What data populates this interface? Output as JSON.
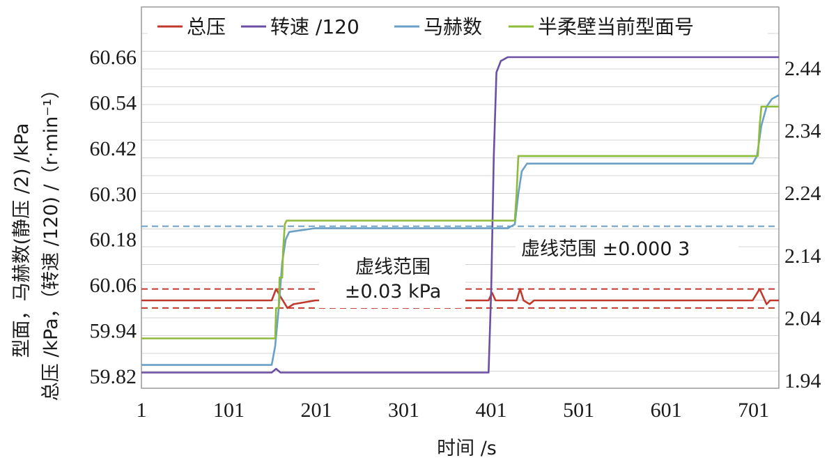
{
  "chart_data": {
    "type": "line",
    "xlabel": "时间 /s",
    "ylabel_left_line1": "型面，马赫数(静压 /2) /kPa",
    "ylabel_left_line2": "总压 /kPa，（转速 /120) /（r·min⁻¹）",
    "x_ticks": [
      "1",
      "101",
      "201",
      "301",
      "401",
      "501",
      "601",
      "701"
    ],
    "xlim": [
      1,
      730
    ],
    "y_left_ticks": [
      "59.82",
      "59.94",
      "60.06",
      "60.18",
      "60.30",
      "60.42",
      "60.54",
      "60.66"
    ],
    "ylim_left": [
      59.82,
      60.66
    ],
    "y_right_ticks": [
      "1.94",
      "2.04",
      "2.14",
      "2.24",
      "2.34",
      "2.44"
    ],
    "ylim_right": [
      1.94,
      2.44
    ],
    "grid": "horizontal",
    "legend_position": "top",
    "legend": [
      {
        "label": "总压",
        "color": "#c0392b"
      },
      {
        "label": "转速 /120",
        "color": "#6b4fa3"
      },
      {
        "label": "马赫数",
        "color": "#6aa0c8"
      },
      {
        "label": "半柔壁当前型面号",
        "color": "#8dbb3a"
      }
    ],
    "annotations": [
      {
        "text": "虚线范围",
        "text2": "±0.03 kPa"
      },
      {
        "text": "虚线范围 ±0.000 3"
      }
    ],
    "series": [
      {
        "name": "总压",
        "color": "#c0392b",
        "points": [
          [
            1,
            60.02
          ],
          [
            50,
            60.02
          ],
          [
            100,
            60.02
          ],
          [
            150,
            60.02
          ],
          [
            155,
            60.05
          ],
          [
            160,
            60.03
          ],
          [
            168,
            60.0
          ],
          [
            175,
            60.01
          ],
          [
            200,
            60.02
          ],
          [
            300,
            60.02
          ],
          [
            398,
            60.02
          ],
          [
            402,
            60.04
          ],
          [
            406,
            60.02
          ],
          [
            430,
            60.02
          ],
          [
            434,
            60.05
          ],
          [
            438,
            60.02
          ],
          [
            445,
            60.01
          ],
          [
            450,
            60.02
          ],
          [
            500,
            60.02
          ],
          [
            600,
            60.02
          ],
          [
            700,
            60.02
          ],
          [
            708,
            60.05
          ],
          [
            712,
            60.03
          ],
          [
            716,
            60.01
          ],
          [
            720,
            60.02
          ],
          [
            730,
            60.02
          ]
        ]
      },
      {
        "name": "转速 /120",
        "color": "#6b4fa3",
        "points": [
          [
            1,
            59.83
          ],
          [
            100,
            59.83
          ],
          [
            150,
            59.83
          ],
          [
            155,
            59.84
          ],
          [
            160,
            59.83
          ],
          [
            200,
            59.83
          ],
          [
            300,
            59.83
          ],
          [
            398,
            59.83
          ],
          [
            401,
            60.05
          ],
          [
            404,
            60.4
          ],
          [
            407,
            60.62
          ],
          [
            412,
            60.65
          ],
          [
            420,
            60.66
          ],
          [
            500,
            60.66
          ],
          [
            600,
            60.66
          ],
          [
            700,
            60.66
          ],
          [
            730,
            60.66
          ]
        ]
      },
      {
        "name": "马赫数",
        "color": "#6aa0c8",
        "points": [
          [
            1,
            59.85
          ],
          [
            100,
            59.85
          ],
          [
            150,
            59.85
          ],
          [
            154,
            59.9
          ],
          [
            158,
            60.0
          ],
          [
            162,
            60.12
          ],
          [
            166,
            60.18
          ],
          [
            170,
            60.2
          ],
          [
            200,
            60.21
          ],
          [
            300,
            60.21
          ],
          [
            400,
            60.21
          ],
          [
            420,
            60.21
          ],
          [
            428,
            60.22
          ],
          [
            432,
            60.3
          ],
          [
            436,
            60.36
          ],
          [
            442,
            60.38
          ],
          [
            450,
            60.38
          ],
          [
            550,
            60.38
          ],
          [
            650,
            60.38
          ],
          [
            700,
            60.38
          ],
          [
            705,
            60.4
          ],
          [
            710,
            60.48
          ],
          [
            716,
            60.53
          ],
          [
            722,
            60.55
          ],
          [
            730,
            60.56
          ]
        ]
      },
      {
        "name": "半柔壁当前型面号",
        "color": "#8dbb3a",
        "points": [
          [
            1,
            59.92
          ],
          [
            150,
            59.92
          ],
          [
            154,
            59.92
          ],
          [
            155,
            60.0
          ],
          [
            158,
            60.0
          ],
          [
            159,
            60.08
          ],
          [
            162,
            60.08
          ],
          [
            163,
            60.15
          ],
          [
            165,
            60.22
          ],
          [
            167,
            60.23
          ],
          [
            300,
            60.23
          ],
          [
            428,
            60.23
          ],
          [
            430,
            60.3
          ],
          [
            432,
            60.4
          ],
          [
            434,
            60.4
          ],
          [
            600,
            60.4
          ],
          [
            706,
            60.4
          ],
          [
            708,
            60.48
          ],
          [
            710,
            60.53
          ],
          [
            730,
            60.53
          ]
        ]
      }
    ],
    "reference_lines": [
      {
        "color": "#c0392b",
        "y": 60.05
      },
      {
        "color": "#c0392b",
        "y": 60.0
      },
      {
        "color": "#6aa0c8",
        "y": 60.215
      }
    ]
  }
}
